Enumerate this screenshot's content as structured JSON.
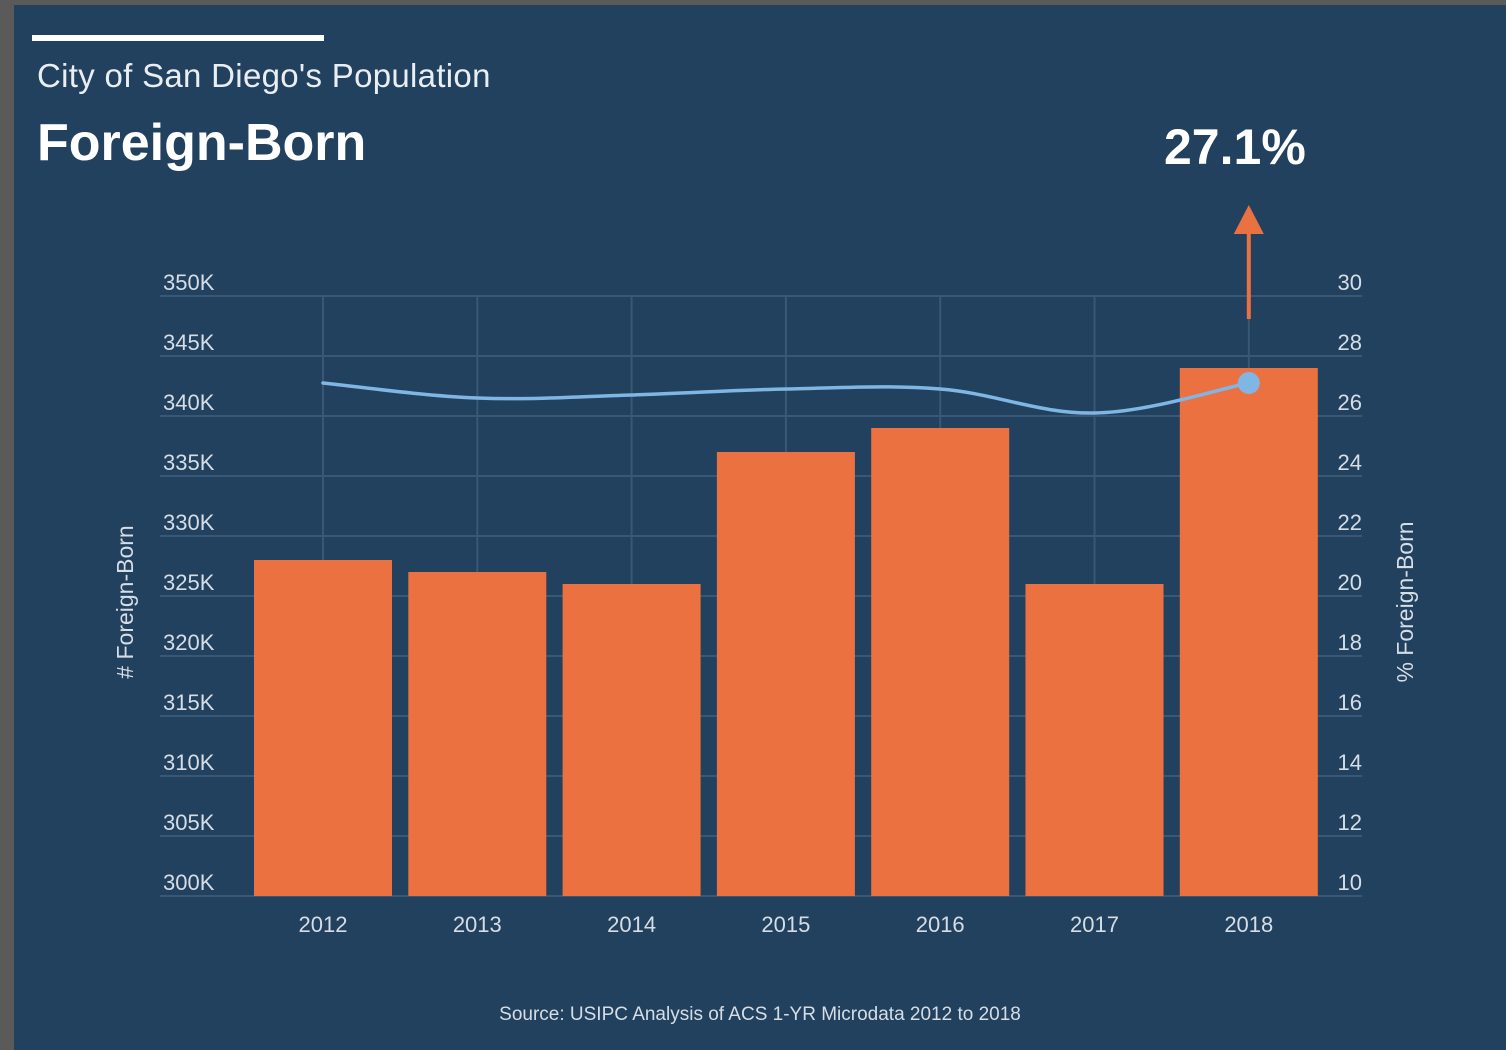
{
  "header": {
    "subtitle": "City of San Diego's Population",
    "title": "Foreign-Born"
  },
  "callout": {
    "text": "27.1%"
  },
  "source": "Source: USIPC Analysis of ACS 1-YR Microdata 2012 to 2018",
  "colors": {
    "background": "#22415f",
    "bar": "#ec7141",
    "line": "#7fb6e4",
    "arrow": "#ec7141",
    "grid": "#3a5876"
  },
  "chart_data": {
    "type": "bar",
    "categories": [
      "2012",
      "2013",
      "2014",
      "2015",
      "2016",
      "2017",
      "2018"
    ],
    "series": [
      {
        "values": [
          328000,
          327000,
          326000,
          337000,
          339000,
          326000,
          344000
        ],
        "axis": "left",
        "type": "bar"
      },
      {
        "values": [
          27.1,
          26.6,
          26.7,
          26.9,
          26.9,
          26.1,
          27.1
        ],
        "axis": "right",
        "type": "line"
      }
    ],
    "ylabel": "# Foreign-Born",
    "y2label": "% Foreign-Born",
    "ylim": [
      300000,
      350000
    ],
    "y2lim": [
      10,
      30
    ],
    "yticks": [
      "300K",
      "305K",
      "310K",
      "315K",
      "320K",
      "325K",
      "330K",
      "335K",
      "340K",
      "345K",
      "350K"
    ],
    "y2ticks": [
      "10",
      "12",
      "14",
      "16",
      "18",
      "20",
      "22",
      "24",
      "26",
      "28",
      "30"
    ],
    "grid": true,
    "highlight": {
      "category": "2018",
      "value": 27.1
    }
  }
}
